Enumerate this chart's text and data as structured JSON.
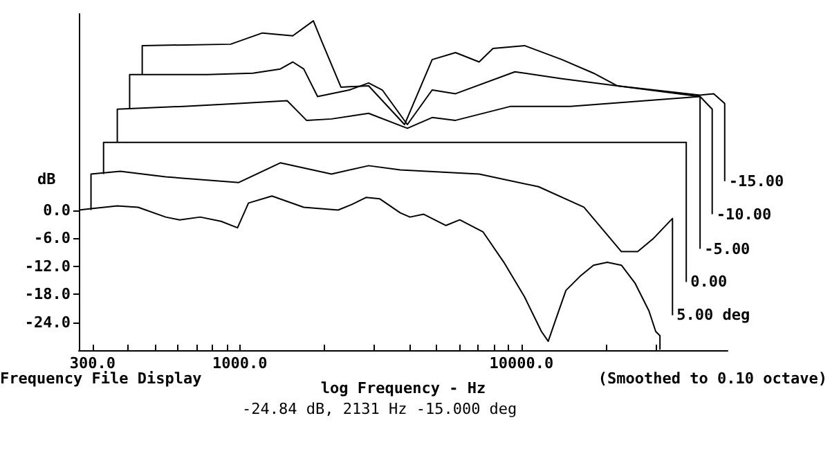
{
  "chart_data": {
    "type": "line",
    "ylabel": "dB",
    "xlabel": "log Frequency - Hz",
    "annotations": [
      "Frequency File Display",
      "(Smoothed to 0.10 octave)",
      "-24.84 dB, 2131 Hz -15.000 deg"
    ],
    "log": "x",
    "xlim": [
      268,
      54000
    ],
    "xticks": [
      {
        "value": 300,
        "label": "300.0"
      },
      {
        "value": 400,
        "label": null
      },
      {
        "value": 500,
        "label": null
      },
      {
        "value": 600,
        "label": null
      },
      {
        "value": 700,
        "label": null
      },
      {
        "value": 800,
        "label": null
      },
      {
        "value": 900,
        "label": null
      },
      {
        "value": 1000,
        "label": "1000.0"
      },
      {
        "value": 2000,
        "label": null
      },
      {
        "value": 3000,
        "label": null
      },
      {
        "value": 4000,
        "label": null
      },
      {
        "value": 5000,
        "label": null
      },
      {
        "value": 6000,
        "label": null
      },
      {
        "value": 7000,
        "label": null
      },
      {
        "value": 8000,
        "label": null
      },
      {
        "value": 9000,
        "label": null
      },
      {
        "value": 10000,
        "label": "10000.0"
      },
      {
        "value": 20000,
        "label": null
      },
      {
        "value": 30000,
        "label": null
      }
    ],
    "ylim": [
      -30,
      42
    ],
    "yticks": [
      {
        "value": -24,
        "label": "-24.0"
      },
      {
        "value": -18,
        "label": "-18.0"
      },
      {
        "value": -12,
        "label": "-12.0"
      },
      {
        "value": -6,
        "label": "-6.0"
      },
      {
        "value": 0,
        "label": "0.0"
      }
    ],
    "grid": false,
    "legend": false,
    "line_style": "solid",
    "series": [
      {
        "color": "#000000",
        "x": [
          268,
          296,
          367,
          435,
          545,
          611,
          723,
          857,
          981,
          1073,
          1300,
          1686,
          2234,
          2500,
          2805,
          3141,
          3715,
          4018,
          4498,
          5395,
          6040,
          7310,
          8665,
          10260,
          11780,
          12450,
          13300,
          14390,
          16140,
          18030,
          20180,
          22650,
          25350,
          28380,
          29990,
          31050,
          31050
        ],
        "values": [
          0,
          0.3,
          0.9,
          0.6,
          -1.5,
          -2.1,
          -1.5,
          -2.4,
          -3.8,
          1.5,
          3.0,
          0.6,
          0,
          1.2,
          2.7,
          2.4,
          -0.6,
          -1.5,
          -0.9,
          -3.3,
          -2.1,
          -4.7,
          -11.2,
          -18.6,
          -26,
          -28.1,
          -23.1,
          -17.2,
          -14.2,
          -11.8,
          -11.2,
          -11.8,
          -15.7,
          -21.6,
          -26,
          -26.9,
          -29.9
        ]
      },
      {
        "name": "5.00 deg",
        "color": "#000000",
        "x": [
          296,
          296,
          376,
          545,
          991,
          1392,
          2115,
          2866,
          3715,
          7076,
          11500,
          16670,
          20180,
          22650,
          25880,
          29300,
          34400,
          34400
        ],
        "values": [
          0,
          7.7,
          8.3,
          7.1,
          5.9,
          10.1,
          7.7,
          9.5,
          8.6,
          7.7,
          5.0,
          0.6,
          -5.3,
          -8.9,
          -8.9,
          -6.2,
          -1.8,
          -22.5
        ]
      },
      {
        "name": "0.00",
        "color": "#000000",
        "x": [
          328,
          328,
          38500,
          38500
        ],
        "values": [
          7.7,
          14.5,
          14.5,
          -15.4
        ]
      },
      {
        "name": "-5.00",
        "color": "#000000",
        "x": [
          367,
          367,
          632,
          991,
          1472,
          1725,
          2115,
          2866,
          3934,
          4819,
          5834,
          9165,
          14900,
          43100,
          43100
        ],
        "values": [
          14.5,
          21.6,
          22.2,
          22.8,
          23.4,
          19.2,
          19.5,
          20.7,
          17.5,
          19.8,
          19.2,
          22.2,
          22.2,
          24.3,
          -8.3
        ]
      },
      {
        "name": "-10.00",
        "color": "#000000",
        "x": [
          406,
          406,
          766,
          1112,
          1392,
          1541,
          1686,
          1888,
          2449,
          2866,
          3206,
          3934,
          4819,
          5834,
          9480,
          13930,
          21870,
          43100,
          47600,
          47600
        ],
        "values": [
          21.6,
          29.0,
          29.0,
          29.3,
          30.2,
          31.7,
          30.2,
          24.3,
          25.7,
          27.2,
          25.7,
          18.3,
          25.7,
          24.9,
          29.6,
          28.1,
          26.6,
          24.3,
          21.6,
          -0.9
        ]
      },
      {
        "name": "-15.00",
        "color": "#000000",
        "x": [
          450,
          450,
          927,
          1202,
          1541,
          1824,
          1954,
          2286,
          2866,
          3846,
          4819,
          5834,
          7076,
          7925,
          10260,
          13930,
          18030,
          21870,
          43100,
          48190,
          52720,
          52720
        ],
        "values": [
          29.0,
          35.2,
          35.5,
          37.9,
          37.3,
          40.5,
          36.1,
          26.3,
          26.6,
          18.3,
          32.2,
          33.7,
          31.7,
          34.6,
          35.2,
          32.2,
          29.3,
          26.6,
          24.6,
          24.9,
          22.8,
          6.2
        ]
      }
    ]
  }
}
